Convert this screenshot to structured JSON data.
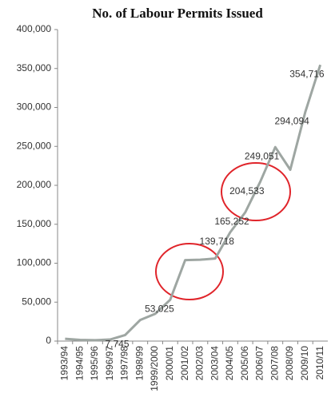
{
  "chart_data": {
    "type": "line",
    "title": "No. of Labour Permits Issued",
    "categories": [
      "1993/94",
      "1994/95",
      "1995/96",
      "1996/97",
      "1997/98",
      "1998/99",
      "1999/2000",
      "2000/01",
      "2001/02",
      "2002/03",
      "2003/04",
      "2004/05",
      "2005/06",
      "2006/07",
      "2007/08",
      "2008/09",
      "2009/10",
      "2010/11"
    ],
    "series": [
      {
        "name": "Labour Permits",
        "color": "#9ea6a2",
        "values": [
          3000,
          1500,
          1200,
          2000,
          7745,
          27000,
          35000,
          53025,
          104000,
          104500,
          106000,
          139718,
          165252,
          204533,
          249051,
          220000,
          294094,
          354716
        ],
        "value_labels": [
          null,
          null,
          null,
          null,
          "7,745",
          null,
          null,
          "53,025",
          null,
          null,
          null,
          "139,718",
          "165,252",
          "204,533",
          "249,051",
          null,
          "294,094",
          "354,716"
        ]
      }
    ],
    "ylim": [
      0,
      400000
    ],
    "yticks": [
      {
        "value": 0,
        "label": "0"
      },
      {
        "value": 50000,
        "label": "50,000"
      },
      {
        "value": 100000,
        "label": "100,000"
      },
      {
        "value": 150000,
        "label": "150,000"
      },
      {
        "value": 200000,
        "label": "200,000"
      },
      {
        "value": 250000,
        "label": "250,000"
      },
      {
        "value": 300000,
        "label": "300,000"
      },
      {
        "value": 350000,
        "label": "350,000"
      },
      {
        "value": 400000,
        "label": "400,000"
      }
    ],
    "grid": false
  }
}
